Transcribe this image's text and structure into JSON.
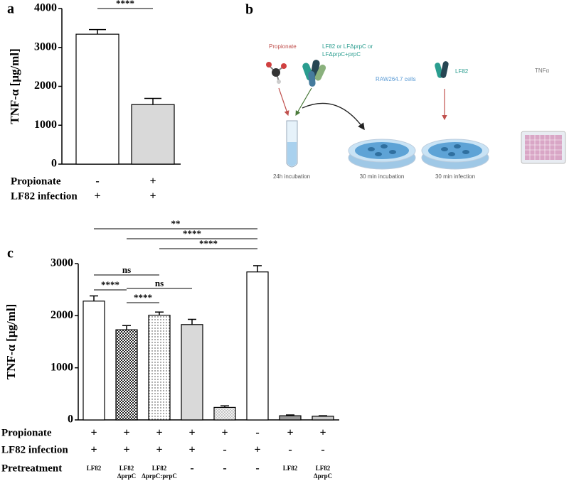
{
  "chart_data": [
    {
      "type": "bar",
      "panel": "a",
      "y_label": "TNF-α [μg/ml]",
      "categories": [
        null,
        null
      ],
      "values": [
        3340,
        1530
      ],
      "errors": [
        120,
        160
      ],
      "colors": [
        "#ffffff",
        "#d9d9d9"
      ],
      "patterns": [
        "none",
        "none"
      ],
      "ylim": [
        0,
        4000
      ],
      "yticks": [
        0,
        1000,
        2000,
        3000,
        4000
      ],
      "rows": [
        {
          "label": "Propionate",
          "values": [
            "-",
            "+"
          ]
        },
        {
          "label": "LF82 infection",
          "values": [
            "+",
            "+"
          ]
        }
      ],
      "comparisons": [
        {
          "label": "****",
          "groups": [
            0,
            1
          ]
        }
      ]
    },
    {
      "type": "bar",
      "panel": "c",
      "y_label": "TNF-α [μg/ml]",
      "categories": [
        null,
        null,
        null,
        null,
        null,
        null,
        null,
        null
      ],
      "values": [
        2280,
        1730,
        2010,
        1830,
        240,
        2840,
        80,
        70
      ],
      "errors": [
        100,
        80,
        60,
        100,
        30,
        120,
        15,
        10
      ],
      "colors": [
        "#ffffff",
        "#555555",
        "#ffffff",
        "#d9d9d9",
        "#e8e8e8",
        "#ffffff",
        "#999999",
        "#c8c8c8"
      ],
      "patterns": [
        "none",
        "checker",
        "dots",
        "none",
        "crosshatch",
        "none",
        "none",
        "none"
      ],
      "ylim": [
        0,
        3000
      ],
      "yticks": [
        0,
        1000,
        2000,
        3000
      ],
      "rows": [
        {
          "label": "Propionate",
          "values": [
            [
              "+"
            ],
            [
              "+"
            ],
            [
              "+"
            ],
            [
              "+"
            ],
            [
              "+"
            ],
            [
              "-"
            ],
            [
              "+"
            ],
            [
              "+"
            ]
          ]
        },
        {
          "label": "LF82 infection",
          "values": [
            [
              "+"
            ],
            [
              "+"
            ],
            [
              "+"
            ],
            [
              "+"
            ],
            [
              "-"
            ],
            [
              "+"
            ],
            [
              "-"
            ],
            [
              "-"
            ]
          ]
        },
        {
          "label": "Pretreatment",
          "values": [
            [
              "LF82"
            ],
            [
              "LF82",
              "ΔprpC"
            ],
            [
              "LF82",
              "ΔprpC:prpC"
            ],
            [
              "-"
            ],
            [
              "-"
            ],
            [
              "-"
            ],
            [
              "LF82"
            ],
            [
              "LF82",
              "ΔprpC"
            ]
          ]
        }
      ],
      "comparisons": [
        {
          "label": "ns",
          "groups": [
            0,
            2
          ]
        },
        {
          "label": "****",
          "groups": [
            0,
            1
          ]
        },
        {
          "label": "ns",
          "groups": [
            1,
            3
          ]
        },
        {
          "label": "****",
          "groups": [
            1,
            2
          ]
        },
        {
          "label": "**",
          "groups": [
            0,
            5
          ]
        },
        {
          "label": "****",
          "groups": [
            1,
            5
          ]
        },
        {
          "label": "****",
          "groups": [
            2,
            5
          ]
        }
      ]
    }
  ],
  "diagram": {
    "label": "b",
    "propionate": "Propionate",
    "strains": [
      "LF82 or LFΔprpC or",
      "LFΔprpC+prpC"
    ],
    "cells": "RAW264.7 cells",
    "infection_strain": "LF82",
    "readout": "TNFα",
    "steps": [
      "24h incubation",
      "30 min incubation",
      "30 min infection"
    ]
  }
}
